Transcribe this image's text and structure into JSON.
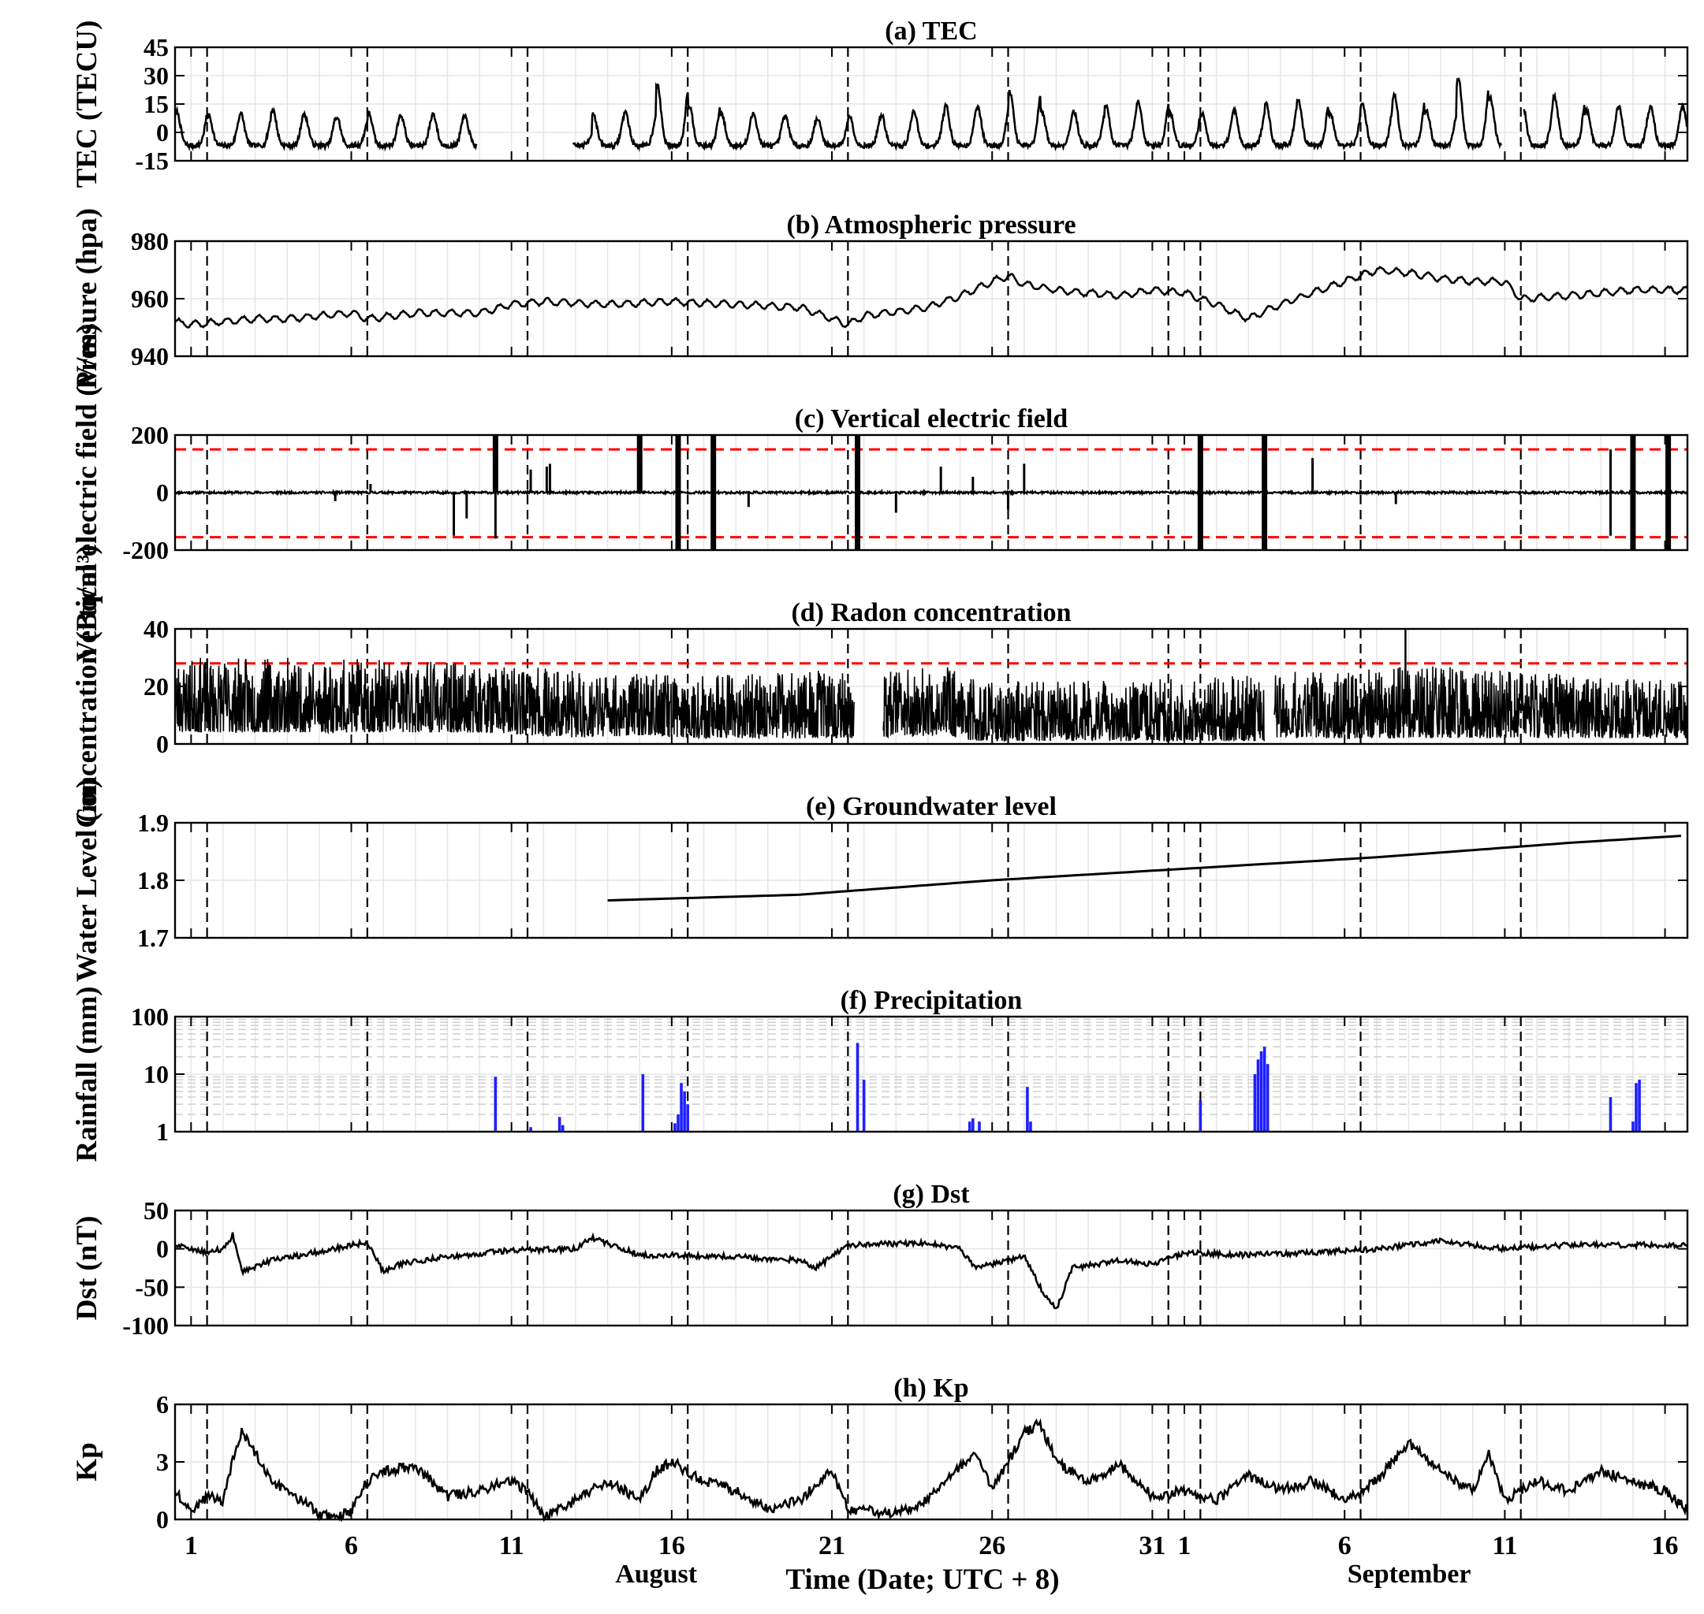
{
  "figure": {
    "xlabel": "Time (Date; UTC + 8)",
    "month_labels": [
      {
        "text": "August",
        "day": 16.5
      },
      {
        "text": "September",
        "day": 40
      }
    ],
    "colors": {
      "line": "#000000",
      "threshold": "#ff0000",
      "rain": "#1f1fff",
      "grid": "#e6e6e6",
      "event": "#000000"
    }
  },
  "chart_data": [
    {
      "id": "a",
      "type": "line",
      "title": "(a) TEC",
      "ylabel": "TEC (TECU)",
      "xlim": [
        0.5,
        47.7
      ],
      "ylim": [
        -15,
        45
      ],
      "yticks": [
        -15,
        0,
        15,
        30,
        45
      ],
      "x_tick_days": [
        1,
        6,
        11,
        16,
        21,
        26,
        31,
        32,
        37,
        42,
        47
      ],
      "x_tick_labels": [
        "1",
        "6",
        "11",
        "16",
        "21",
        "26",
        "31",
        "1",
        "6",
        "11",
        "16"
      ],
      "event_days": [
        1.5,
        6.5,
        11.5,
        16.5,
        21.5,
        26.5,
        31.5,
        32.5,
        37.5,
        42.5
      ],
      "gaps": [
        [
          9.9,
          12.9
        ],
        [
          41.9,
          42.6
        ]
      ],
      "series": [
        {
          "daily_peak": [
            11,
            9,
            10,
            12,
            9,
            8,
            10,
            9,
            10,
            8,
            0,
            0,
            0,
            10,
            11,
            25,
            14,
            10,
            10,
            8,
            7,
            9,
            9,
            12,
            15,
            13,
            22,
            11,
            11,
            14,
            17,
            10,
            10,
            12,
            15,
            18,
            10,
            16,
            20,
            12,
            28,
            18,
            15,
            19,
            12,
            14,
            13
          ],
          "daily_trough": -7
        }
      ]
    },
    {
      "id": "b",
      "type": "line",
      "title": "(b) Atmospheric pressure",
      "ylabel": "Pressure (hpa)",
      "xlim": [
        0.5,
        47.7
      ],
      "ylim": [
        940,
        980
      ],
      "yticks": [
        940,
        960,
        980
      ],
      "x_tick_days": [
        1,
        6,
        11,
        16,
        21,
        26,
        31,
        32,
        37,
        42,
        47
      ],
      "event_days": [
        1.5,
        6.5,
        11.5,
        16.5,
        21.5,
        26.5,
        31.5,
        32.5,
        37.5,
        42.5
      ],
      "series": [
        {
          "x": [
            0.5,
            1,
            2,
            3,
            4,
            5,
            6,
            6.5,
            8,
            10,
            11,
            12,
            14,
            16,
            18,
            20,
            21.5,
            22,
            24,
            25,
            26,
            26.5,
            27,
            28,
            29,
            30,
            31,
            32,
            33,
            34,
            35,
            36,
            37,
            38,
            39,
            40,
            41,
            42,
            42.5,
            44,
            46,
            47.7
          ],
          "y": [
            952,
            951,
            952,
            953,
            953,
            954,
            955,
            953,
            955,
            955,
            958,
            959,
            958,
            959,
            958,
            957,
            951,
            954,
            957,
            961,
            966,
            968,
            965,
            963,
            962,
            961,
            963,
            962,
            958,
            953,
            958,
            962,
            966,
            970,
            969,
            967,
            966,
            966,
            960,
            961,
            963,
            963
          ]
        }
      ]
    },
    {
      "id": "c",
      "type": "line",
      "title": "(c) Vertical electric field",
      "ylabel": "Vertical electric field (V/m)",
      "xlim": [
        0.5,
        47.7
      ],
      "ylim": [
        -200,
        200
      ],
      "yticks": [
        -200,
        0,
        200
      ],
      "thresholds": [
        150,
        -155
      ],
      "x_tick_days": [
        1,
        6,
        11,
        16,
        21,
        26,
        31,
        32,
        37,
        42,
        47
      ],
      "event_days": [
        1.5,
        6.5,
        11.5,
        16.5,
        21.5,
        26.5,
        31.5,
        32.5,
        37.5,
        42.5
      ],
      "series": [
        {
          "spikes": [
            [
              5.5,
              -30
            ],
            [
              6.6,
              30
            ],
            [
              9.2,
              -150
            ],
            [
              9.6,
              -90
            ],
            [
              10.5,
              200
            ],
            [
              10.5,
              -160
            ],
            [
              11.6,
              80
            ],
            [
              12.1,
              90
            ],
            [
              12.2,
              100
            ],
            [
              15.0,
              200
            ],
            [
              16.2,
              200
            ],
            [
              16.2,
              -200
            ],
            [
              17.3,
              200
            ],
            [
              17.3,
              -200
            ],
            [
              18.4,
              -50
            ],
            [
              21.8,
              200
            ],
            [
              21.8,
              -200
            ],
            [
              23.0,
              -70
            ],
            [
              24.4,
              90
            ],
            [
              25.4,
              55
            ],
            [
              26.5,
              -60
            ],
            [
              27.0,
              100
            ],
            [
              32.5,
              200
            ],
            [
              32.5,
              -200
            ],
            [
              34.5,
              200
            ],
            [
              34.5,
              -200
            ],
            [
              36.0,
              120
            ],
            [
              38.6,
              -40
            ],
            [
              45.3,
              150
            ],
            [
              45.3,
              -150
            ],
            [
              46.0,
              200
            ],
            [
              46.0,
              -200
            ],
            [
              47.1,
              200
            ],
            [
              47.1,
              -200
            ]
          ]
        }
      ]
    },
    {
      "id": "d",
      "type": "line",
      "title": "(d) Radon concentration",
      "ylabel": "Concentration (Bq/m³)",
      "xlim": [
        0.5,
        47.7
      ],
      "ylim": [
        0,
        40
      ],
      "yticks": [
        0,
        20,
        40
      ],
      "thresholds": [
        28
      ],
      "x_tick_days": [
        1,
        6,
        11,
        16,
        21,
        26,
        31,
        32,
        37,
        42,
        47
      ],
      "event_days": [
        1.5,
        6.5,
        11.5,
        16.5,
        21.5,
        26.5,
        31.5,
        32.5,
        37.5,
        42.5
      ],
      "gaps": [
        [
          21.7,
          22.6
        ],
        [
          34.5,
          34.8
        ]
      ],
      "series": [
        {
          "envelope_x": [
            0.5,
            5,
            10,
            13,
            15,
            17,
            21.7,
            22.6,
            24.5,
            25.5,
            30,
            34.5,
            34.8,
            40,
            47.7
          ],
          "envelope_min": [
            4,
            4,
            4,
            2,
            3,
            2,
            2,
            2,
            3,
            1,
            1,
            1,
            2,
            2,
            2
          ],
          "envelope_max": [
            30,
            30,
            28,
            26,
            25,
            24,
            26,
            25,
            28,
            22,
            22,
            24,
            25,
            27,
            22
          ],
          "max_point": [
            38.9,
            40
          ]
        }
      ]
    },
    {
      "id": "e",
      "type": "line",
      "title": "(e) Groundwater level",
      "ylabel": "Water Level (m)",
      "xlim": [
        0.5,
        47.7
      ],
      "ylim": [
        1.7,
        1.9
      ],
      "yticks": [
        1.7,
        1.8,
        1.9
      ],
      "x_tick_days": [
        1,
        6,
        11,
        16,
        21,
        26,
        31,
        32,
        37,
        42,
        47
      ],
      "event_days": [
        1.5,
        6.5,
        11.5,
        16.5,
        21.5,
        26.5,
        31.5,
        32.5,
        37.5,
        42.5
      ],
      "series": [
        {
          "x": [
            14.0,
            20,
            26,
            32,
            38,
            44,
            47.7
          ],
          "y": [
            1.765,
            1.775,
            1.8,
            1.82,
            1.84,
            1.865,
            1.878
          ]
        }
      ]
    },
    {
      "id": "f",
      "type": "bar",
      "title": "(f) Precipitation",
      "ylabel": "Rainfall (mm)",
      "xlim": [
        0.5,
        47.7
      ],
      "ylim": [
        1,
        100
      ],
      "yscale": "log",
      "yticks": [
        1,
        10,
        100
      ],
      "x_tick_days": [
        1,
        6,
        11,
        16,
        21,
        26,
        31,
        32,
        37,
        42,
        47
      ],
      "event_days": [
        1.5,
        6.5,
        11.5,
        16.5,
        21.5,
        26.5,
        31.5,
        32.5,
        37.5,
        42.5
      ],
      "series": [
        {
          "bars": [
            [
              10.5,
              9
            ],
            [
              11.6,
              1.2
            ],
            [
              12.5,
              1.8
            ],
            [
              12.6,
              1.3
            ],
            [
              15.1,
              10
            ],
            [
              16.1,
              1.4
            ],
            [
              16.2,
              2
            ],
            [
              16.3,
              7
            ],
            [
              16.4,
              5
            ],
            [
              16.5,
              3
            ],
            [
              21.8,
              35
            ],
            [
              22.0,
              8
            ],
            [
              25.3,
              1.5
            ],
            [
              25.4,
              1.7
            ],
            [
              25.6,
              1.5
            ],
            [
              27.1,
              6
            ],
            [
              27.2,
              1.5
            ],
            [
              32.5,
              3.5
            ],
            [
              34.2,
              10
            ],
            [
              34.3,
              18
            ],
            [
              34.4,
              25
            ],
            [
              34.5,
              30
            ],
            [
              34.6,
              15
            ],
            [
              45.3,
              4
            ],
            [
              46.0,
              1.5
            ],
            [
              46.1,
              7
            ],
            [
              46.2,
              8
            ]
          ]
        }
      ]
    },
    {
      "id": "g",
      "type": "line",
      "title": "(g) Dst",
      "ylabel": "Dst (nT)",
      "xlim": [
        0.5,
        47.7
      ],
      "ylim": [
        -100,
        50
      ],
      "yticks": [
        -100,
        -50,
        0,
        50
      ],
      "x_tick_days": [
        1,
        6,
        11,
        16,
        21,
        26,
        31,
        32,
        37,
        42,
        47
      ],
      "event_days": [
        1.5,
        6.5,
        11.5,
        16.5,
        21.5,
        26.5,
        31.5,
        32.5,
        37.5,
        42.5
      ],
      "series": [
        {
          "x": [
            0.5,
            1.5,
            2.0,
            2.3,
            2.6,
            3.5,
            4.5,
            6,
            6.5,
            7,
            7.5,
            9,
            11,
            13,
            13.5,
            15,
            18,
            20,
            20.5,
            21.5,
            24,
            25,
            25.5,
            26.5,
            27,
            27.5,
            28,
            28.5,
            30,
            31,
            32,
            34,
            36,
            38,
            40,
            41,
            42,
            44,
            47.7
          ],
          "y": [
            5,
            -5,
            0,
            18,
            -30,
            -15,
            -8,
            5,
            8,
            -30,
            -20,
            -10,
            -2,
            0,
            15,
            -8,
            -10,
            -15,
            -25,
            5,
            8,
            0,
            -25,
            -15,
            -10,
            -50,
            -80,
            -25,
            -15,
            -20,
            -5,
            -8,
            -5,
            0,
            10,
            5,
            0,
            5,
            5
          ]
        }
      ]
    },
    {
      "id": "h",
      "type": "line",
      "title": "(h) Kp",
      "ylabel": "Kp",
      "xlim": [
        0.5,
        47.7
      ],
      "ylim": [
        0,
        6
      ],
      "yticks": [
        0,
        3,
        6
      ],
      "x_tick_days": [
        1,
        6,
        11,
        16,
        21,
        26,
        31,
        32,
        37,
        42,
        47
      ],
      "x_tick_labels": [
        "1",
        "6",
        "11",
        "16",
        "21",
        "26",
        "31",
        "1",
        "6",
        "11",
        "16"
      ],
      "event_days": [
        1.5,
        6.5,
        11.5,
        16.5,
        21.5,
        26.5,
        31.5,
        32.5,
        37.5,
        42.5
      ],
      "series": [
        {
          "x": [
            0.5,
            1,
            1.5,
            2,
            2.3,
            2.6,
            3,
            3.5,
            4,
            5,
            5.5,
            6,
            6.5,
            7,
            8,
            8.5,
            9,
            10,
            11,
            11.5,
            12,
            13,
            14,
            15,
            15.5,
            16,
            17,
            18,
            19,
            20,
            21,
            21.5,
            22,
            23,
            24,
            25,
            25.5,
            26,
            27,
            27.5,
            28,
            29,
            30,
            31,
            32,
            33,
            34,
            35,
            36,
            37,
            38,
            38.5,
            39,
            40,
            41,
            41.5,
            42,
            43,
            44,
            45,
            46,
            47,
            47.7
          ],
          "y": [
            1.5,
            0.5,
            1.2,
            1,
            3,
            4.6,
            3.5,
            2,
            1.5,
            0.3,
            0,
            0.5,
            2,
            2.5,
            2.8,
            2,
            1.2,
            1.5,
            2,
            1.5,
            0.2,
            1,
            2,
            1,
            2.5,
            3,
            2,
            1.5,
            0.5,
            1,
            2.5,
            0.5,
            0.5,
            0.3,
            1,
            2.8,
            3.5,
            1.5,
            4.5,
            5,
            3,
            2,
            2.8,
            1.2,
            1.5,
            1,
            2.3,
            1.5,
            2,
            1,
            2,
            3,
            4,
            2.5,
            1.5,
            3.5,
            1,
            2,
            1.5,
            2.5,
            2,
            1.5,
            0.5
          ]
        }
      ]
    }
  ]
}
